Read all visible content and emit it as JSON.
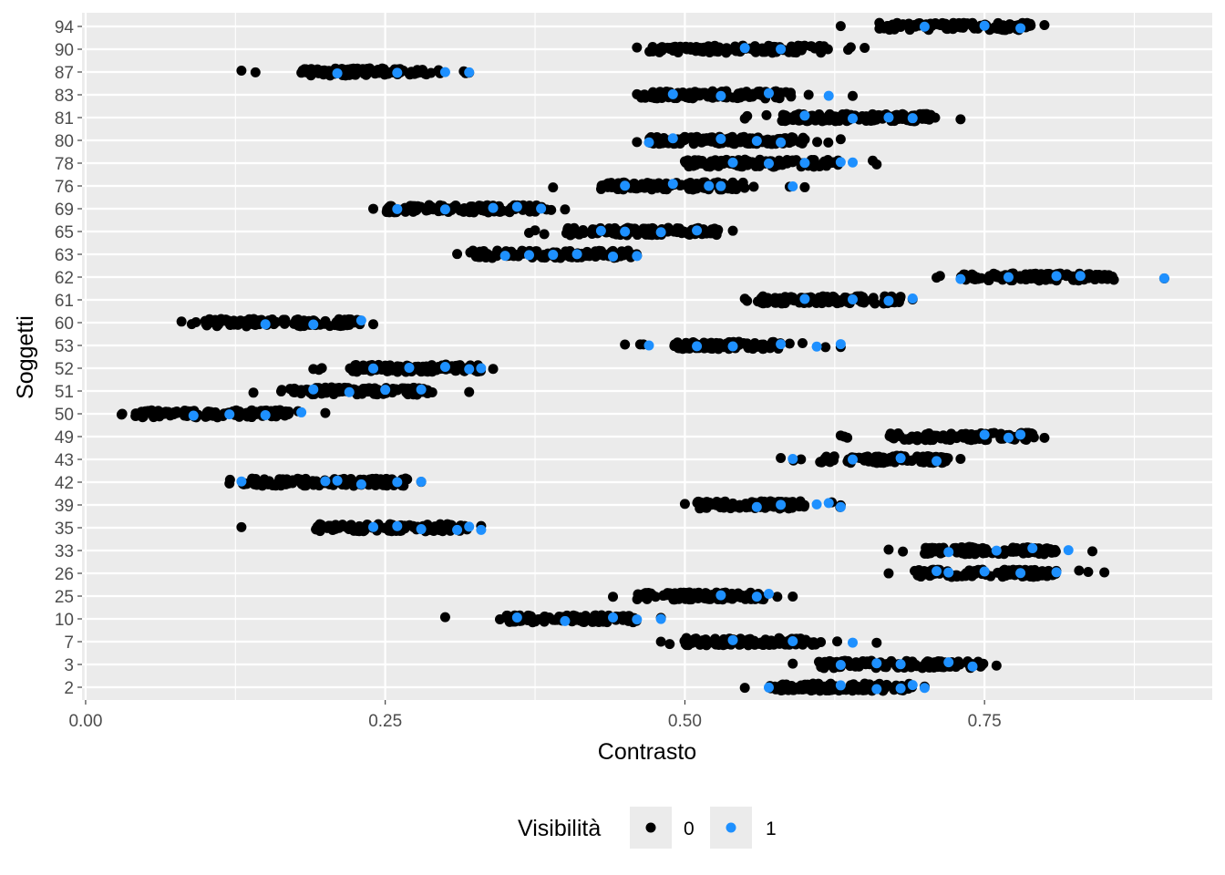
{
  "chart_data": {
    "type": "scatter",
    "xlabel": "Contrasto",
    "ylabel": "Soggetti",
    "xlim": [
      -0.003,
      0.94
    ],
    "x_ticks": [
      0.0,
      0.25,
      0.5,
      0.75
    ],
    "x_tick_labels": [
      "0.00",
      "0.25",
      "0.50",
      "0.75"
    ],
    "categories": [
      "2",
      "3",
      "7",
      "10",
      "25",
      "26",
      "33",
      "35",
      "39",
      "42",
      "43",
      "49",
      "50",
      "51",
      "52",
      "53",
      "60",
      "61",
      "62",
      "63",
      "65",
      "69",
      "76",
      "78",
      "80",
      "81",
      "83",
      "87",
      "90",
      "94"
    ],
    "legend": {
      "title": "Visibilità",
      "position": "bottom",
      "entries": [
        {
          "label": "0",
          "color": "#000000"
        },
        {
          "label": "1",
          "color": "#1e90ff"
        }
      ]
    },
    "grid": true,
    "point_distribution_note": "",
    "subjects": [
      {
        "id": "2",
        "range": [
          0.55,
          0.7
        ],
        "dense": [
          0.57,
          0.69
        ],
        "vis1": [
          0.57,
          0.63,
          0.66,
          0.68,
          0.69,
          0.7
        ]
      },
      {
        "id": "3",
        "range": [
          0.59,
          0.76
        ],
        "dense": [
          0.61,
          0.75
        ],
        "vis1": [
          0.63,
          0.66,
          0.68,
          0.72,
          0.74
        ]
      },
      {
        "id": "7",
        "range": [
          0.48,
          0.66
        ],
        "dense": [
          0.5,
          0.61
        ],
        "vis1": [
          0.54,
          0.59,
          0.64
        ]
      },
      {
        "id": "10",
        "range": [
          0.3,
          0.48
        ],
        "dense": [
          0.35,
          0.46
        ],
        "vis1": [
          0.36,
          0.4,
          0.44,
          0.46,
          0.48
        ]
      },
      {
        "id": "25",
        "range": [
          0.44,
          0.59
        ],
        "dense": [
          0.46,
          0.57
        ],
        "vis1": [
          0.53,
          0.56,
          0.57
        ]
      },
      {
        "id": "26",
        "range": [
          0.67,
          0.85
        ],
        "dense": [
          0.69,
          0.81
        ],
        "vis1": [
          0.71,
          0.72,
          0.75,
          0.78,
          0.81
        ]
      },
      {
        "id": "33",
        "range": [
          0.67,
          0.84
        ],
        "dense": [
          0.7,
          0.81
        ],
        "vis1": [
          0.72,
          0.76,
          0.79,
          0.82
        ]
      },
      {
        "id": "35",
        "range": [
          0.13,
          0.33
        ],
        "dense": [
          0.19,
          0.32
        ],
        "vis1": [
          0.24,
          0.26,
          0.28,
          0.31,
          0.32,
          0.33
        ]
      },
      {
        "id": "39",
        "range": [
          0.5,
          0.63
        ],
        "dense": [
          0.51,
          0.6
        ],
        "vis1": [
          0.56,
          0.58,
          0.61,
          0.62,
          0.63
        ]
      },
      {
        "id": "42",
        "range": [
          0.12,
          0.28
        ],
        "dense": [
          0.13,
          0.27
        ],
        "vis1": [
          0.13,
          0.2,
          0.21,
          0.23,
          0.26,
          0.28
        ]
      },
      {
        "id": "43",
        "range": [
          0.58,
          0.73
        ],
        "dense": [
          0.61,
          0.72
        ],
        "vis1": [
          0.59,
          0.64,
          0.68,
          0.71
        ]
      },
      {
        "id": "49",
        "range": [
          0.63,
          0.8
        ],
        "dense": [
          0.67,
          0.79
        ],
        "vis1": [
          0.75,
          0.77,
          0.78
        ]
      },
      {
        "id": "50",
        "range": [
          0.03,
          0.2
        ],
        "dense": [
          0.04,
          0.17
        ],
        "vis1": [
          0.09,
          0.12,
          0.15,
          0.18
        ]
      },
      {
        "id": "51",
        "range": [
          0.14,
          0.32
        ],
        "dense": [
          0.17,
          0.29
        ],
        "vis1": [
          0.19,
          0.22,
          0.25,
          0.28
        ]
      },
      {
        "id": "52",
        "range": [
          0.19,
          0.34
        ],
        "dense": [
          0.22,
          0.33
        ],
        "vis1": [
          0.24,
          0.27,
          0.3,
          0.32,
          0.33
        ]
      },
      {
        "id": "53",
        "range": [
          0.45,
          0.63
        ],
        "dense": [
          0.49,
          0.58
        ],
        "vis1": [
          0.47,
          0.51,
          0.54,
          0.58,
          0.61,
          0.63
        ]
      },
      {
        "id": "60",
        "range": [
          0.08,
          0.24
        ],
        "dense": [
          0.1,
          0.23
        ],
        "vis1": [
          0.15,
          0.19,
          0.23
        ]
      },
      {
        "id": "61",
        "range": [
          0.55,
          0.69
        ],
        "dense": [
          0.56,
          0.68
        ],
        "vis1": [
          0.6,
          0.64,
          0.67,
          0.69
        ]
      },
      {
        "id": "62",
        "range": [
          0.71,
          0.9
        ],
        "dense": [
          0.73,
          0.86
        ],
        "vis1": [
          0.73,
          0.77,
          0.81,
          0.83,
          0.9
        ]
      },
      {
        "id": "63",
        "range": [
          0.31,
          0.46
        ],
        "dense": [
          0.32,
          0.46
        ],
        "vis1": [
          0.35,
          0.37,
          0.39,
          0.41,
          0.44,
          0.46
        ]
      },
      {
        "id": "65",
        "range": [
          0.37,
          0.54
        ],
        "dense": [
          0.4,
          0.53
        ],
        "vis1": [
          0.43,
          0.45,
          0.48,
          0.51
        ]
      },
      {
        "id": "69",
        "range": [
          0.24,
          0.4
        ],
        "dense": [
          0.25,
          0.39
        ],
        "vis1": [
          0.26,
          0.3,
          0.34,
          0.36,
          0.38
        ]
      },
      {
        "id": "76",
        "range": [
          0.39,
          0.6
        ],
        "dense": [
          0.43,
          0.55
        ],
        "vis1": [
          0.45,
          0.49,
          0.52,
          0.53,
          0.59
        ]
      },
      {
        "id": "78",
        "range": [
          0.5,
          0.66
        ],
        "dense": [
          0.5,
          0.63
        ],
        "vis1": [
          0.54,
          0.57,
          0.6,
          0.63,
          0.64
        ]
      },
      {
        "id": "80",
        "range": [
          0.46,
          0.63
        ],
        "dense": [
          0.47,
          0.6
        ],
        "vis1": [
          0.47,
          0.49,
          0.53,
          0.56,
          0.58
        ]
      },
      {
        "id": "81",
        "range": [
          0.55,
          0.73
        ],
        "dense": [
          0.58,
          0.71
        ],
        "vis1": [
          0.6,
          0.64,
          0.67,
          0.69
        ]
      },
      {
        "id": "83",
        "range": [
          0.46,
          0.64
        ],
        "dense": [
          0.46,
          0.59
        ],
        "vis1": [
          0.49,
          0.53,
          0.57,
          0.62
        ]
      },
      {
        "id": "87",
        "range": [
          0.13,
          0.32
        ],
        "dense": [
          0.18,
          0.29
        ],
        "vis1": [
          0.21,
          0.26,
          0.3,
          0.32
        ]
      },
      {
        "id": "90",
        "range": [
          0.46,
          0.65
        ],
        "dense": [
          0.47,
          0.62
        ],
        "vis1": [
          0.55,
          0.58
        ]
      },
      {
        "id": "94",
        "range": [
          0.63,
          0.8
        ],
        "dense": [
          0.66,
          0.79
        ],
        "vis1": [
          0.7,
          0.75,
          0.78
        ]
      }
    ]
  }
}
